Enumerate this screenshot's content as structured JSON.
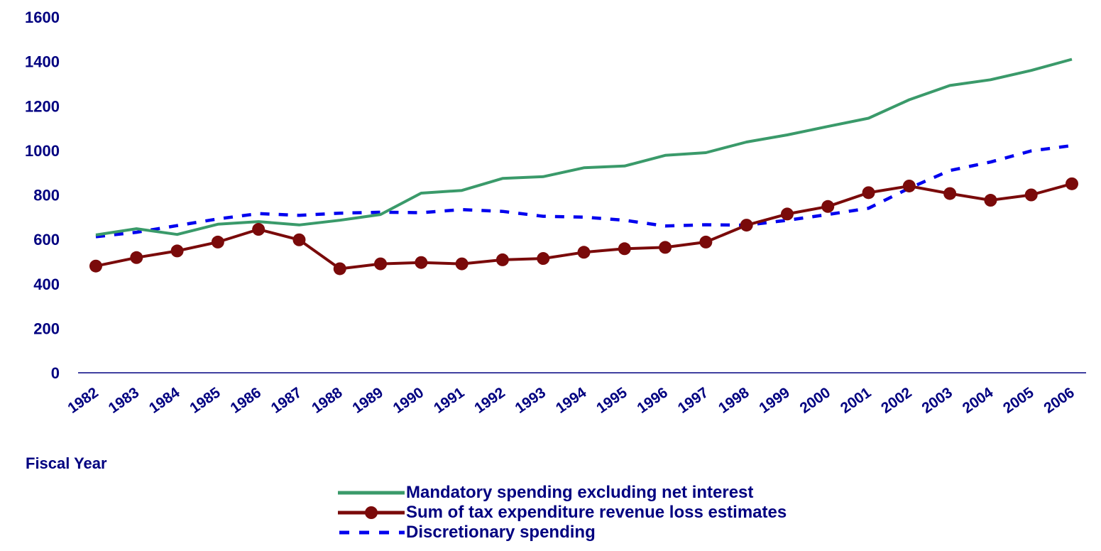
{
  "colors": {
    "text": "#000080",
    "mandatory": "#3a9a6a",
    "tax": "#7a0a0a",
    "discretionary": "#0000ee",
    "axis": "#000080"
  },
  "chart_data": {
    "type": "line",
    "title": "",
    "xlabel": "Fiscal Year",
    "ylabel": "",
    "ylim": [
      0,
      1600
    ],
    "yticks": [
      "0",
      "200",
      "400",
      "600",
      "800",
      "1000",
      "1200",
      "1400",
      "1600"
    ],
    "categories": [
      "1982",
      "1983",
      "1984",
      "1985",
      "1986",
      "1987",
      "1988",
      "1989",
      "1990",
      "1991",
      "1992",
      "1993",
      "1994",
      "1995",
      "1996",
      "1997",
      "1998",
      "1999",
      "2000",
      "2001",
      "2002",
      "2003",
      "2004",
      "2005",
      "2006"
    ],
    "grid": false,
    "legend_position": "bottom",
    "series": [
      {
        "name": "Mandatory spending excluding net interest",
        "style": "solid",
        "values": [
          620,
          648,
          622,
          668,
          680,
          665,
          686,
          712,
          808,
          820,
          874,
          882,
          922,
          930,
          978,
          990,
          1038,
          1070,
          1108,
          1145,
          1228,
          1292,
          1318,
          1360,
          1410
        ]
      },
      {
        "name": "Sum of tax expenditure revenue loss estimates",
        "style": "solid-markers",
        "values": [
          480,
          518,
          548,
          588,
          645,
          598,
          468,
          490,
          496,
          490,
          508,
          514,
          542,
          558,
          564,
          588,
          664,
          714,
          748,
          810,
          840,
          806,
          776,
          800,
          850
        ]
      },
      {
        "name": "Discretionary spending",
        "style": "dashed",
        "values": [
          612,
          632,
          662,
          692,
          716,
          708,
          718,
          722,
          720,
          734,
          726,
          704,
          700,
          686,
          660,
          666,
          664,
          686,
          712,
          740,
          830,
          910,
          948,
          998,
          1022
        ]
      }
    ]
  },
  "legend": {
    "items": [
      {
        "label": "Mandatory spending excluding net interest"
      },
      {
        "label": "Sum of tax expenditure revenue loss estimates"
      },
      {
        "label": "Discretionary spending"
      }
    ]
  }
}
